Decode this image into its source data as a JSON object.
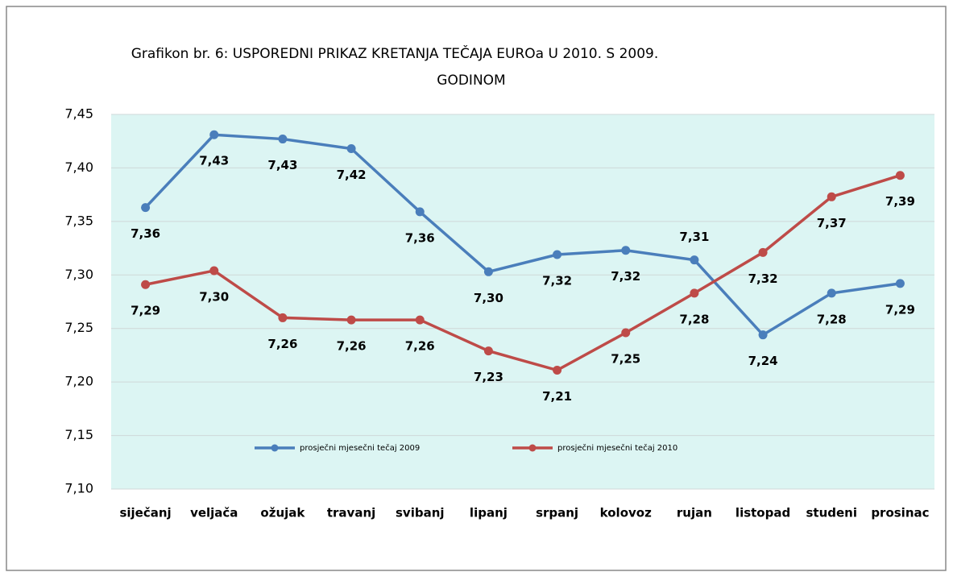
{
  "chart_data": {
    "type": "line",
    "title": [
      "Grafikon br.  6:  USPOREDNI PRIKAZ KRETANJA TEČAJA EUROa U 2010. S 2009.",
      "GODINOM"
    ],
    "categories": [
      "siječanj",
      "veljača",
      "ožujak",
      "travanj",
      "svibanj",
      "lipanj",
      "srpanj",
      "kolovoz",
      "rujan",
      "listopad",
      "studeni",
      "prosinac"
    ],
    "series": [
      {
        "name": "prosječni mjesečni tečaj 2009",
        "color": "#4a7ebb",
        "values": [
          7.363,
          7.431,
          7.427,
          7.418,
          7.359,
          7.303,
          7.319,
          7.323,
          7.314,
          7.244,
          7.283,
          7.292
        ],
        "value_labels": [
          "7,36",
          "7,43",
          "7,43",
          "7,42",
          "7,36",
          "7,30",
          "7,32",
          "7,32",
          "7,31",
          "7,24",
          "7,28",
          "7,29"
        ]
      },
      {
        "name": "prosječni mjesečni tečaj 2010",
        "color": "#be4b48",
        "values": [
          7.291,
          7.304,
          7.26,
          7.258,
          7.258,
          7.229,
          7.211,
          7.246,
          7.283,
          7.321,
          7.373,
          7.393
        ],
        "value_labels": [
          "7,29",
          "7,30",
          "7,26",
          "7,26",
          "7,26",
          "7,23",
          "7,21",
          "7,25",
          "7,28",
          "7,32",
          "7,37",
          "7,39"
        ]
      }
    ],
    "ylim": [
      7.1,
      7.45
    ],
    "yticks": [
      {
        "value": 7.1,
        "label": "7,10"
      },
      {
        "value": 7.15,
        "label": "7,15"
      },
      {
        "value": 7.2,
        "label": "7,20"
      },
      {
        "value": 7.25,
        "label": "7,25"
      },
      {
        "value": 7.3,
        "label": "7,30"
      },
      {
        "value": 7.35,
        "label": "7,35"
      },
      {
        "value": 7.4,
        "label": "7,40"
      },
      {
        "value": 7.45,
        "label": "7,45"
      }
    ],
    "grid": true,
    "legend": "bottom"
  }
}
